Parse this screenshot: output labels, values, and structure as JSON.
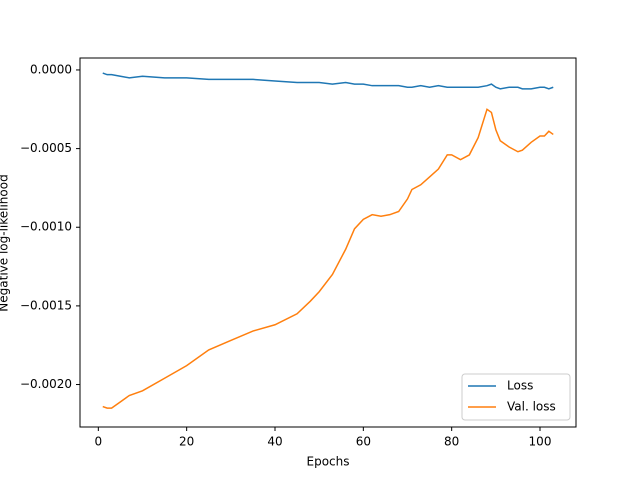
{
  "chart_data": {
    "type": "line",
    "x_label": "Epochs",
    "y_label": "Negative log-likelihood",
    "x": [
      1,
      2,
      3,
      5,
      7,
      10,
      15,
      20,
      25,
      30,
      35,
      40,
      45,
      48,
      50,
      53,
      56,
      58,
      60,
      62,
      64,
      66,
      68,
      70,
      71,
      73,
      75,
      77,
      79,
      80,
      82,
      84,
      86,
      88,
      89,
      90,
      91,
      93,
      95,
      96,
      98,
      100,
      101,
      102,
      103
    ],
    "series": [
      {
        "name": "Loss",
        "color": "#1f77b4",
        "values": [
          -2e-05,
          -3e-05,
          -3e-05,
          -4e-05,
          -5e-05,
          -4e-05,
          -5e-05,
          -5e-05,
          -6e-05,
          -6e-05,
          -6e-05,
          -7e-05,
          -8e-05,
          -8e-05,
          -8e-05,
          -9e-05,
          -8e-05,
          -9e-05,
          -9e-05,
          -0.0001,
          -0.0001,
          -0.0001,
          -0.0001,
          -0.00011,
          -0.00011,
          -0.0001,
          -0.00011,
          -0.0001,
          -0.00011,
          -0.00011,
          -0.00011,
          -0.00011,
          -0.00011,
          -0.0001,
          -9e-05,
          -0.00011,
          -0.00012,
          -0.00011,
          -0.00011,
          -0.00012,
          -0.00012,
          -0.00011,
          -0.00011,
          -0.00012,
          -0.00011
        ]
      },
      {
        "name": "Val. loss",
        "color": "#ff7f0e",
        "values": [
          -0.00214,
          -0.00215,
          -0.00215,
          -0.00211,
          -0.00207,
          -0.00204,
          -0.00196,
          -0.00188,
          -0.00178,
          -0.00172,
          -0.00166,
          -0.00162,
          -0.00155,
          -0.00147,
          -0.00141,
          -0.0013,
          -0.00114,
          -0.00101,
          -0.00095,
          -0.00092,
          -0.00093,
          -0.00092,
          -0.0009,
          -0.00082,
          -0.00076,
          -0.00073,
          -0.00068,
          -0.00063,
          -0.00054,
          -0.00054,
          -0.00057,
          -0.00054,
          -0.00043,
          -0.00025,
          -0.00027,
          -0.00038,
          -0.00045,
          -0.00049,
          -0.00052,
          -0.00051,
          -0.00046,
          -0.00042,
          -0.00042,
          -0.00039,
          -0.00041
        ]
      }
    ],
    "xlim": [
      -4.15,
      108.15
    ],
    "ylim": [
      -0.00227,
      7.6e-05
    ],
    "xticks": [
      0,
      20,
      40,
      60,
      80,
      100
    ],
    "yticks": [
      {
        "value": 0,
        "label": "0.0000"
      },
      {
        "value": -0.0005,
        "label": "−0.0005"
      },
      {
        "value": -0.001,
        "label": "−0.0010"
      },
      {
        "value": -0.0015,
        "label": "−0.0015"
      },
      {
        "value": -0.002,
        "label": "−0.0020"
      }
    ],
    "legend": "lower right"
  }
}
